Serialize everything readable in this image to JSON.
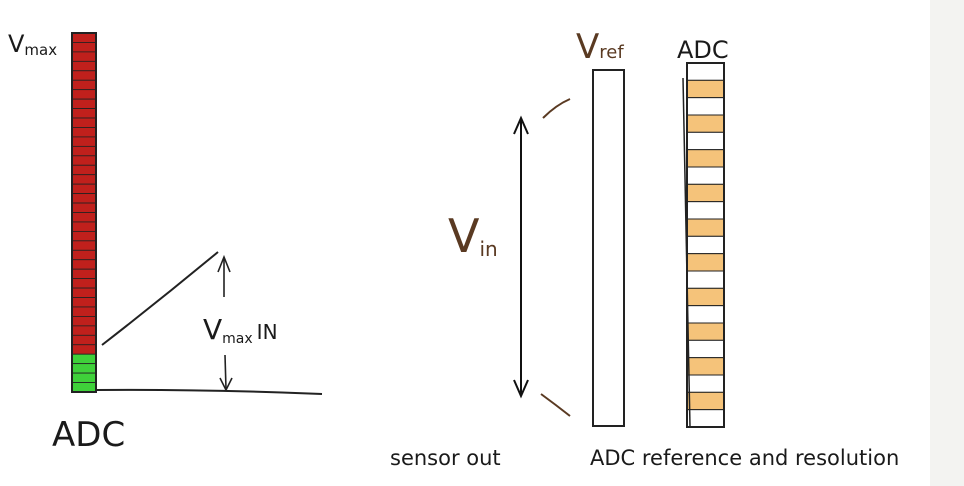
{
  "left_panel": {
    "top_label_main": "V",
    "top_label_sub": "max",
    "bottom_label": "ADC",
    "range_label_main": "V",
    "range_label_sub": "max",
    "range_label_suffix": "IN",
    "bar_segments_total": 38,
    "bar_segments_green": 4,
    "colors": {
      "red": "#c0201c",
      "green": "#3fd13a",
      "outline": "#222222"
    }
  },
  "right_panel": {
    "vref_label_main": "V",
    "vref_label_sub": "ref",
    "adc_label": "ADC",
    "vin_label_main": "V",
    "vin_label_sub": "in",
    "adc_segments_total": 21,
    "colors": {
      "orange": "#f5c37a",
      "white": "#ffffff",
      "outline": "#222222",
      "brown": "#5a3a22"
    }
  },
  "captions": {
    "left": "sensor out",
    "right": "ADC reference and resolution"
  }
}
